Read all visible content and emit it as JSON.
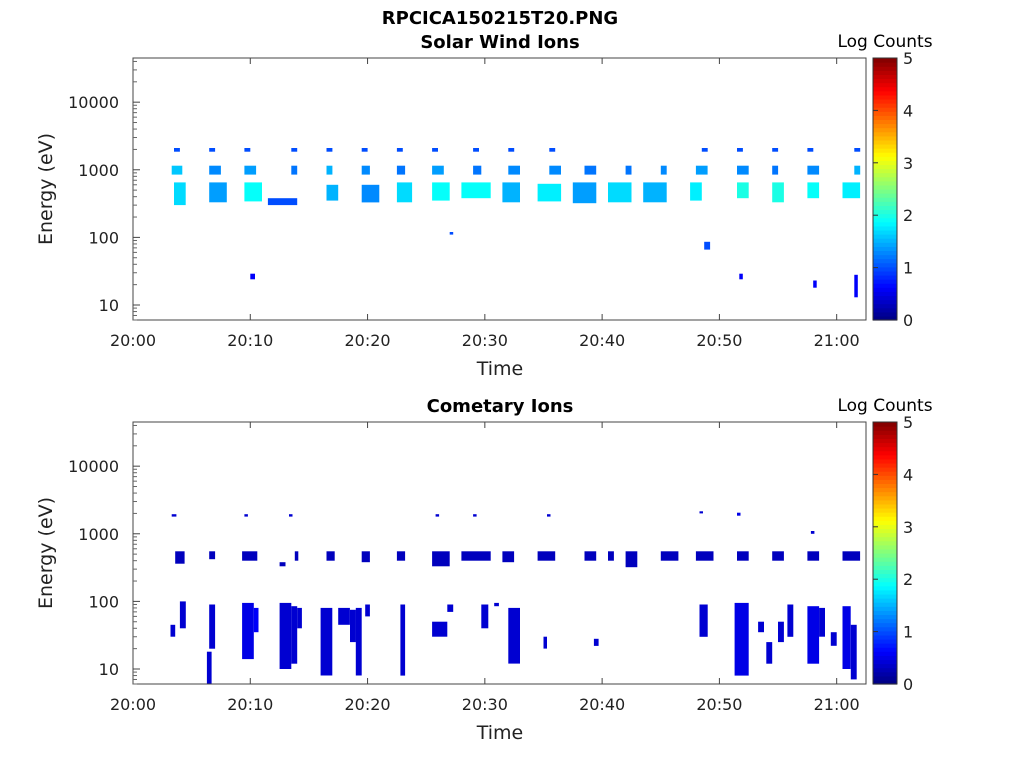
{
  "figure_title": "RPCICA150215T20.PNG",
  "chart_data": [
    {
      "type": "heatmap",
      "title": "Solar Wind Ions",
      "xlabel": "Time",
      "ylabel": "Energy (eV)",
      "x_ticks": [
        "20:00",
        "20:10",
        "20:20",
        "20:30",
        "20:40",
        "20:50",
        "21:00"
      ],
      "x_range_minutes": [
        0,
        62.5
      ],
      "y_scale": "log",
      "y_ticks": [
        "10",
        "100",
        "1000",
        "10000"
      ],
      "y_range_ev": [
        6,
        45000
      ],
      "colorbar": {
        "label": "Log Counts",
        "range": [
          0,
          5
        ],
        "ticks": [
          "0",
          "1",
          "2",
          "3",
          "4",
          "5"
        ],
        "colormap": "jet"
      },
      "cells": [
        [
          3.5,
          4,
          1850,
          2100,
          1
        ],
        [
          6.5,
          7,
          1850,
          2100,
          1
        ],
        [
          9.5,
          10,
          1850,
          2100,
          1
        ],
        [
          13.5,
          14,
          1850,
          2100,
          1
        ],
        [
          16.5,
          17,
          1850,
          2100,
          1
        ],
        [
          19.5,
          20,
          1850,
          2100,
          1
        ],
        [
          22.5,
          23,
          1850,
          2100,
          1
        ],
        [
          25.5,
          26,
          1850,
          2100,
          1
        ],
        [
          29,
          29.5,
          1850,
          2100,
          1
        ],
        [
          32,
          32.5,
          1850,
          2100,
          1
        ],
        [
          35.5,
          36,
          1850,
          2100,
          1
        ],
        [
          48.5,
          49,
          1850,
          2100,
          1
        ],
        [
          51.5,
          52,
          1850,
          2100,
          1
        ],
        [
          54.5,
          55,
          1850,
          2100,
          1
        ],
        [
          57.5,
          58,
          1850,
          2100,
          1
        ],
        [
          61.5,
          62,
          1850,
          2100,
          1
        ],
        [
          3.3,
          4.2,
          850,
          1150,
          1.6
        ],
        [
          6.5,
          7.5,
          850,
          1150,
          1.3
        ],
        [
          9.5,
          10.5,
          850,
          1150,
          1.4
        ],
        [
          13.5,
          14,
          850,
          1150,
          1.2
        ],
        [
          16.5,
          17,
          850,
          1150,
          1.5
        ],
        [
          19.5,
          20.2,
          850,
          1150,
          1.3
        ],
        [
          22.5,
          23.2,
          850,
          1150,
          1.2
        ],
        [
          25.5,
          26.5,
          850,
          1150,
          1.4
        ],
        [
          29,
          29.7,
          850,
          1150,
          1.2
        ],
        [
          32,
          33,
          850,
          1150,
          1.3
        ],
        [
          35.5,
          36.5,
          850,
          1150,
          1.3
        ],
        [
          38.5,
          39.5,
          850,
          1150,
          1.2
        ],
        [
          42,
          42.5,
          850,
          1150,
          1.2
        ],
        [
          45,
          45.5,
          850,
          1150,
          1.3
        ],
        [
          48,
          49,
          850,
          1150,
          1.4
        ],
        [
          51.5,
          52.5,
          850,
          1150,
          1.3
        ],
        [
          54.5,
          55,
          850,
          1150,
          1.2
        ],
        [
          57.5,
          58.5,
          850,
          1150,
          1.3
        ],
        [
          61.5,
          62,
          850,
          1150,
          1.5
        ],
        [
          3.5,
          4.5,
          300,
          650,
          1.7
        ],
        [
          6.5,
          8,
          330,
          650,
          1.4
        ],
        [
          9.5,
          11,
          340,
          650,
          1.9
        ],
        [
          11.5,
          14,
          300,
          380,
          1
        ],
        [
          16.5,
          17.5,
          350,
          600,
          1.5
        ],
        [
          19.5,
          21,
          330,
          600,
          1.3
        ],
        [
          22.5,
          23.8,
          330,
          650,
          1.7
        ],
        [
          25.5,
          27,
          350,
          650,
          1.9
        ],
        [
          28,
          30.5,
          380,
          650,
          1.9
        ],
        [
          31.5,
          33,
          330,
          650,
          1.5
        ],
        [
          34.5,
          36.5,
          340,
          620,
          1.8
        ],
        [
          37.5,
          39.5,
          320,
          650,
          1.4
        ],
        [
          40.5,
          42.5,
          330,
          650,
          1.7
        ],
        [
          43.5,
          45.5,
          330,
          650,
          1.5
        ],
        [
          47.5,
          48.5,
          350,
          650,
          1.8
        ],
        [
          51.5,
          52.5,
          380,
          650,
          2
        ],
        [
          54.5,
          55.5,
          330,
          650,
          2
        ],
        [
          57.5,
          58.5,
          380,
          650,
          1.9
        ],
        [
          60.5,
          62,
          380,
          650,
          1.8
        ],
        [
          27,
          27.3,
          110,
          120,
          1
        ],
        [
          48.7,
          49.2,
          66,
          86,
          1
        ],
        [
          10,
          10.4,
          24,
          29,
          0.6
        ],
        [
          51.7,
          52,
          24,
          29,
          0.6
        ],
        [
          58,
          58.3,
          18,
          23,
          0.6
        ],
        [
          61.5,
          61.8,
          13,
          28,
          0.6
        ]
      ]
    },
    {
      "type": "heatmap",
      "title": "Cometary Ions",
      "xlabel": "Time",
      "ylabel": "Energy (eV)",
      "x_ticks": [
        "20:00",
        "20:10",
        "20:20",
        "20:30",
        "20:40",
        "20:50",
        "21:00"
      ],
      "x_range_minutes": [
        0,
        62.5
      ],
      "y_scale": "log",
      "y_ticks": [
        "10",
        "100",
        "1000",
        "10000"
      ],
      "y_range_ev": [
        6,
        45000
      ],
      "colorbar": {
        "label": "Log Counts",
        "range": [
          0,
          5
        ],
        "ticks": [
          "0",
          "1",
          "2",
          "3",
          "4",
          "5"
        ],
        "colormap": "jet"
      },
      "cells": [
        [
          3.3,
          3.7,
          1800,
          1950,
          0.4
        ],
        [
          9.5,
          9.8,
          1800,
          1950,
          0.4
        ],
        [
          13.3,
          13.6,
          1800,
          1950,
          0.4
        ],
        [
          25.8,
          26.1,
          1800,
          1950,
          0.4
        ],
        [
          29,
          29.3,
          1800,
          1950,
          0.4
        ],
        [
          35.3,
          35.6,
          1800,
          1950,
          0.4
        ],
        [
          48.3,
          48.6,
          2000,
          2150,
          0.4
        ],
        [
          51.5,
          51.8,
          1850,
          2050,
          0.5
        ],
        [
          57.8,
          58.1,
          1000,
          1100,
          0.4
        ],
        [
          3.6,
          4.4,
          360,
          550,
          0.3
        ],
        [
          6.5,
          7,
          420,
          550,
          0.3
        ],
        [
          9.3,
          10.6,
          400,
          550,
          0.3
        ],
        [
          12.5,
          13,
          330,
          380,
          0.3
        ],
        [
          13.8,
          14.1,
          400,
          550,
          0.3
        ],
        [
          16.5,
          17.2,
          400,
          550,
          0.3
        ],
        [
          19.5,
          20.2,
          380,
          550,
          0.3
        ],
        [
          22.5,
          23.2,
          400,
          550,
          0.3
        ],
        [
          25.5,
          27,
          330,
          550,
          0.3
        ],
        [
          28,
          30.5,
          400,
          550,
          0.3
        ],
        [
          31.5,
          32.5,
          380,
          550,
          0.3
        ],
        [
          34.5,
          36,
          400,
          550,
          0.3
        ],
        [
          38.5,
          39.5,
          400,
          550,
          0.3
        ],
        [
          40.5,
          41,
          400,
          550,
          0.3
        ],
        [
          42,
          43,
          320,
          550,
          0.3
        ],
        [
          45,
          46.5,
          400,
          550,
          0.3
        ],
        [
          48,
          49.5,
          400,
          550,
          0.3
        ],
        [
          51.5,
          52.5,
          400,
          550,
          0.3
        ],
        [
          54.5,
          55.5,
          400,
          550,
          0.3
        ],
        [
          57.5,
          58.5,
          400,
          550,
          0.3
        ],
        [
          60.5,
          62,
          400,
          550,
          0.3
        ],
        [
          4,
          4.5,
          40,
          100,
          0.4
        ],
        [
          3.2,
          3.6,
          30,
          45,
          0.4
        ],
        [
          6.5,
          7,
          20,
          90,
          0.4
        ],
        [
          9.3,
          10.3,
          14,
          95,
          0.5
        ],
        [
          10.3,
          10.7,
          35,
          80,
          0.6
        ],
        [
          12.5,
          13.5,
          10,
          95,
          0.4
        ],
        [
          13.5,
          14,
          12,
          85,
          0.4
        ],
        [
          14,
          14.4,
          40,
          80,
          0.4
        ],
        [
          16,
          17,
          8,
          80,
          0.4
        ],
        [
          17.5,
          18.5,
          45,
          80,
          0.4
        ],
        [
          18.5,
          19,
          25,
          75,
          0.4
        ],
        [
          19,
          19.5,
          8,
          80,
          0.4
        ],
        [
          19.8,
          20.2,
          60,
          90,
          0.4
        ],
        [
          22.8,
          23.2,
          8,
          90,
          0.4
        ],
        [
          25.5,
          26.8,
          30,
          50,
          0.4
        ],
        [
          26.8,
          27.3,
          70,
          90,
          0.4
        ],
        [
          29.7,
          30.3,
          40,
          90,
          0.4
        ],
        [
          32,
          33,
          12,
          80,
          0.4
        ],
        [
          35,
          35.3,
          20,
          30,
          0.4
        ],
        [
          39.3,
          39.7,
          22,
          28,
          0.4
        ],
        [
          48.3,
          49,
          30,
          90,
          0.4
        ],
        [
          51.3,
          52.5,
          8,
          95,
          0.5
        ],
        [
          53.3,
          53.8,
          35,
          50,
          0.4
        ],
        [
          54,
          54.5,
          12,
          25,
          0.4
        ],
        [
          55,
          55.5,
          25,
          50,
          0.4
        ],
        [
          55.8,
          56.3,
          30,
          90,
          0.4
        ],
        [
          57.5,
          58.5,
          12,
          85,
          0.5
        ],
        [
          58.5,
          59,
          30,
          80,
          0.4
        ],
        [
          59.5,
          60,
          22,
          35,
          0.4
        ],
        [
          60.5,
          61.2,
          10,
          85,
          0.5
        ],
        [
          61.2,
          61.7,
          7,
          45,
          0.4
        ],
        [
          6.3,
          6.7,
          6,
          18,
          0.4
        ],
        [
          30.8,
          31.2,
          85,
          95,
          0.4
        ]
      ]
    }
  ]
}
